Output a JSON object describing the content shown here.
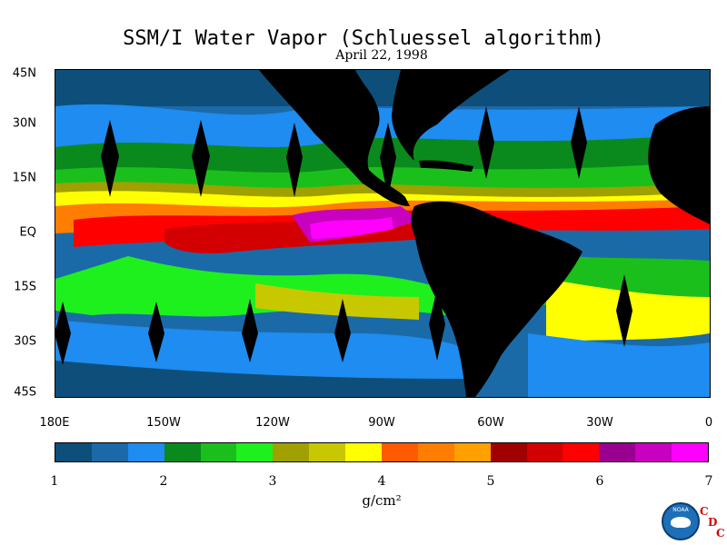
{
  "title": "SSM/I Water Vapor (Schluessel algorithm)",
  "subtitle": "April 22, 1998",
  "latitude_labels": [
    "45N",
    "30N",
    "15N",
    "EQ",
    "15S",
    "30S",
    "45S"
  ],
  "longitude_labels": [
    "180E",
    "150W",
    "120W",
    "90W",
    "60W",
    "30W",
    "0"
  ],
  "colorbar": {
    "tick_labels": [
      "1",
      "2",
      "3",
      "4",
      "5",
      "6",
      "7"
    ],
    "unit": "g/cm²",
    "colors": [
      "#0d4f7a",
      "#1b6aa8",
      "#1e8cf0",
      "#0a8a1c",
      "#1bbf1b",
      "#1ef01e",
      "#a0a000",
      "#c8c800",
      "#ffff00",
      "#ff5a00",
      "#ff7d00",
      "#ffa000",
      "#a00000",
      "#d20000",
      "#ff0000",
      "#9a0090",
      "#c800c0",
      "#ff00ff"
    ]
  },
  "logo": {
    "text": "NOAA",
    "letters": [
      "C",
      "D",
      "C"
    ]
  }
}
